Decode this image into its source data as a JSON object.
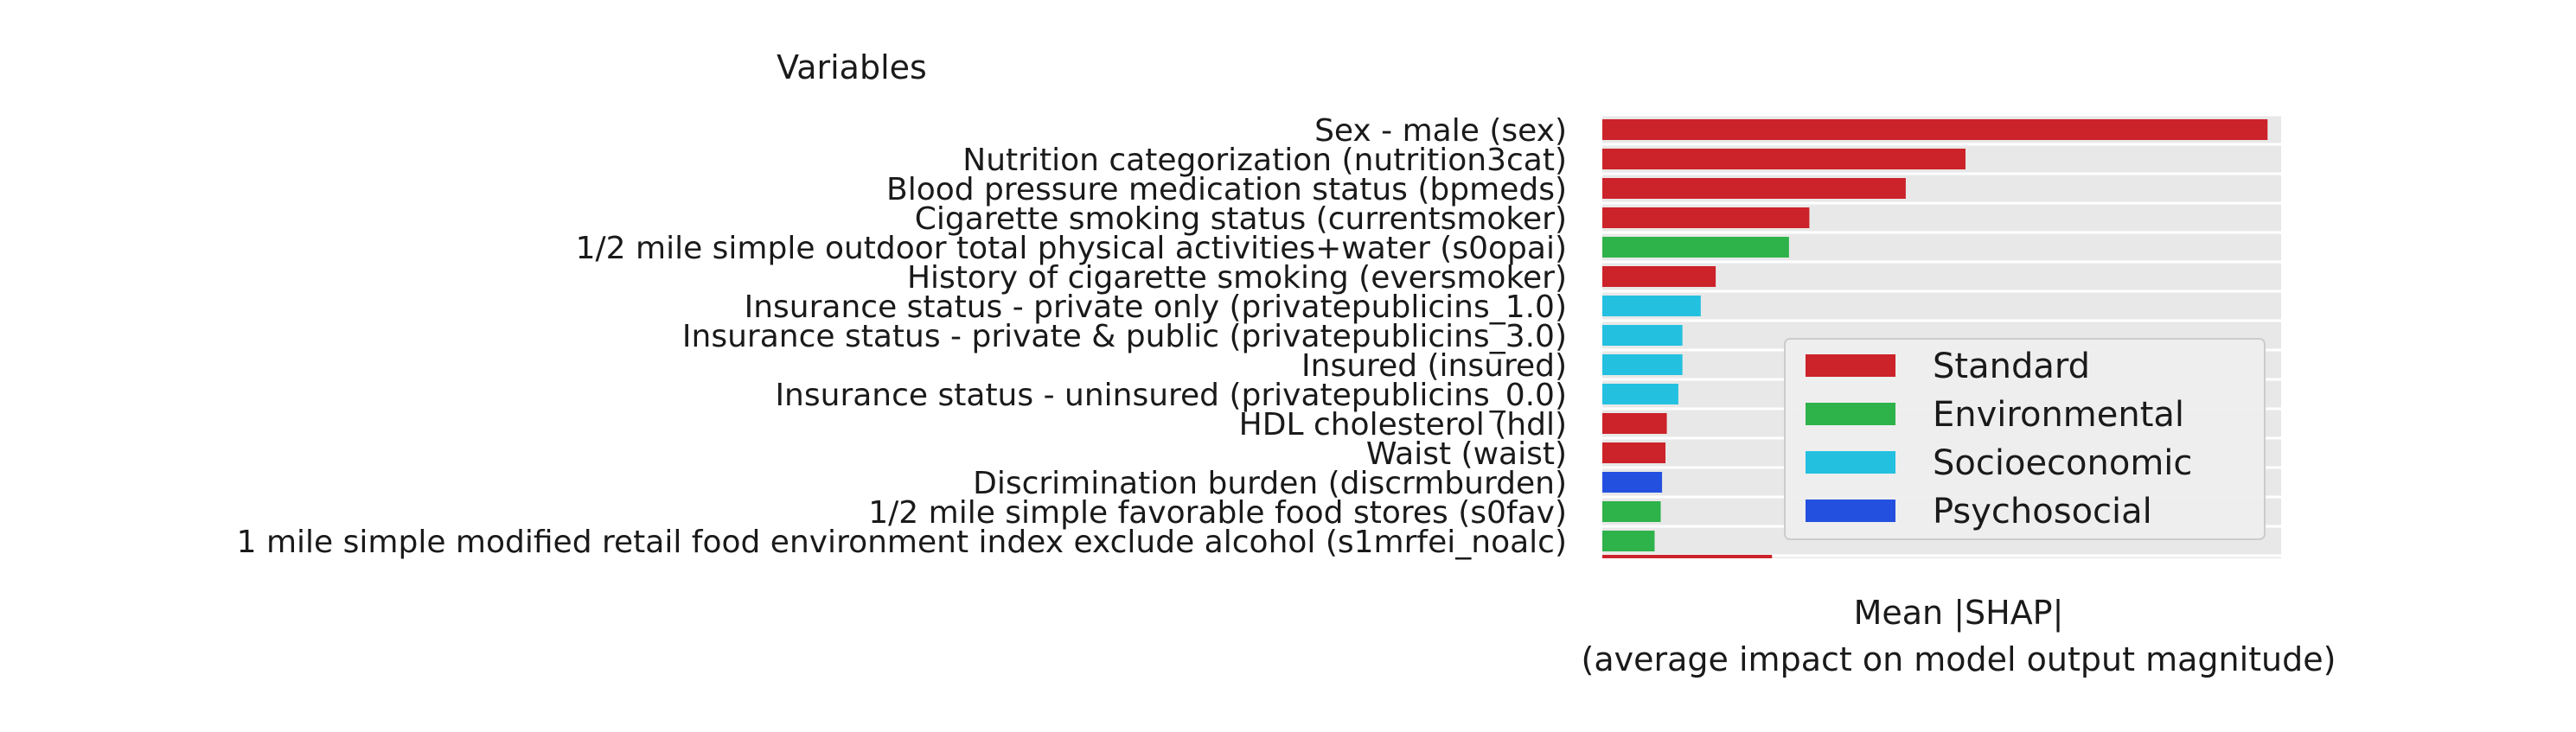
{
  "chart_data": {
    "type": "bar",
    "orientation": "horizontal",
    "title": "",
    "ylabel": "Variables",
    "xlabel_lines": [
      "Mean |SHAP|",
      "(average impact on model output magnitude)"
    ],
    "grid": true,
    "legend_position": "lower-right",
    "xlim": [
      0,
      1
    ],
    "categories": [
      "Sex - male (sex)",
      "Nutrition categorization (nutrition3cat)",
      "Blood pressure medication status (bpmeds)",
      "Cigarette smoking status (currentsmoker)",
      "1/2 mile simple outdoor total physical activities+water (s0opai)",
      "History of cigarette smoking (eversmoker)",
      "Insurance status - private only (privatepublicins_1.0)",
      "Insurance status - private & public (privatepublicins_3.0)",
      "Insured (insured)",
      "Insurance status - uninsured (privatepublicins_0.0)",
      "HDL cholesterol (hdl)",
      "Waist (waist)",
      "Discrimination burden (discrmburden)",
      "1/2 mile simple favorable food stores (s0fav)",
      "1 mile simple modified retail food environment index exclude alcohol (s1mrfei_noalc)"
    ],
    "values": [
      0.98,
      0.535,
      0.447,
      0.305,
      0.275,
      0.167,
      0.145,
      0.118,
      0.118,
      0.112,
      0.095,
      0.093,
      0.088,
      0.086,
      0.077
    ],
    "groups": [
      "Standard",
      "Standard",
      "Standard",
      "Standard",
      "Environmental",
      "Standard",
      "Socioeconomic",
      "Socioeconomic",
      "Socioeconomic",
      "Socioeconomic",
      "Standard",
      "Standard",
      "Psychosocial",
      "Environmental",
      "Environmental"
    ],
    "partial_bar": {
      "value": 0.25,
      "group": "Standard"
    },
    "legend": [
      {
        "name": "Standard",
        "color": "#cc2229"
      },
      {
        "name": "Environmental",
        "color": "#2eb24a"
      },
      {
        "name": "Socioeconomic",
        "color": "#24c0e0"
      },
      {
        "name": "Psychosocial",
        "color": "#2450e0"
      }
    ],
    "colors": {
      "Standard": "#cc2229",
      "Environmental": "#2eb24a",
      "Socioeconomic": "#24c0e0",
      "Psychosocial": "#2450e0",
      "plot_background": "#e8e8e8"
    }
  }
}
